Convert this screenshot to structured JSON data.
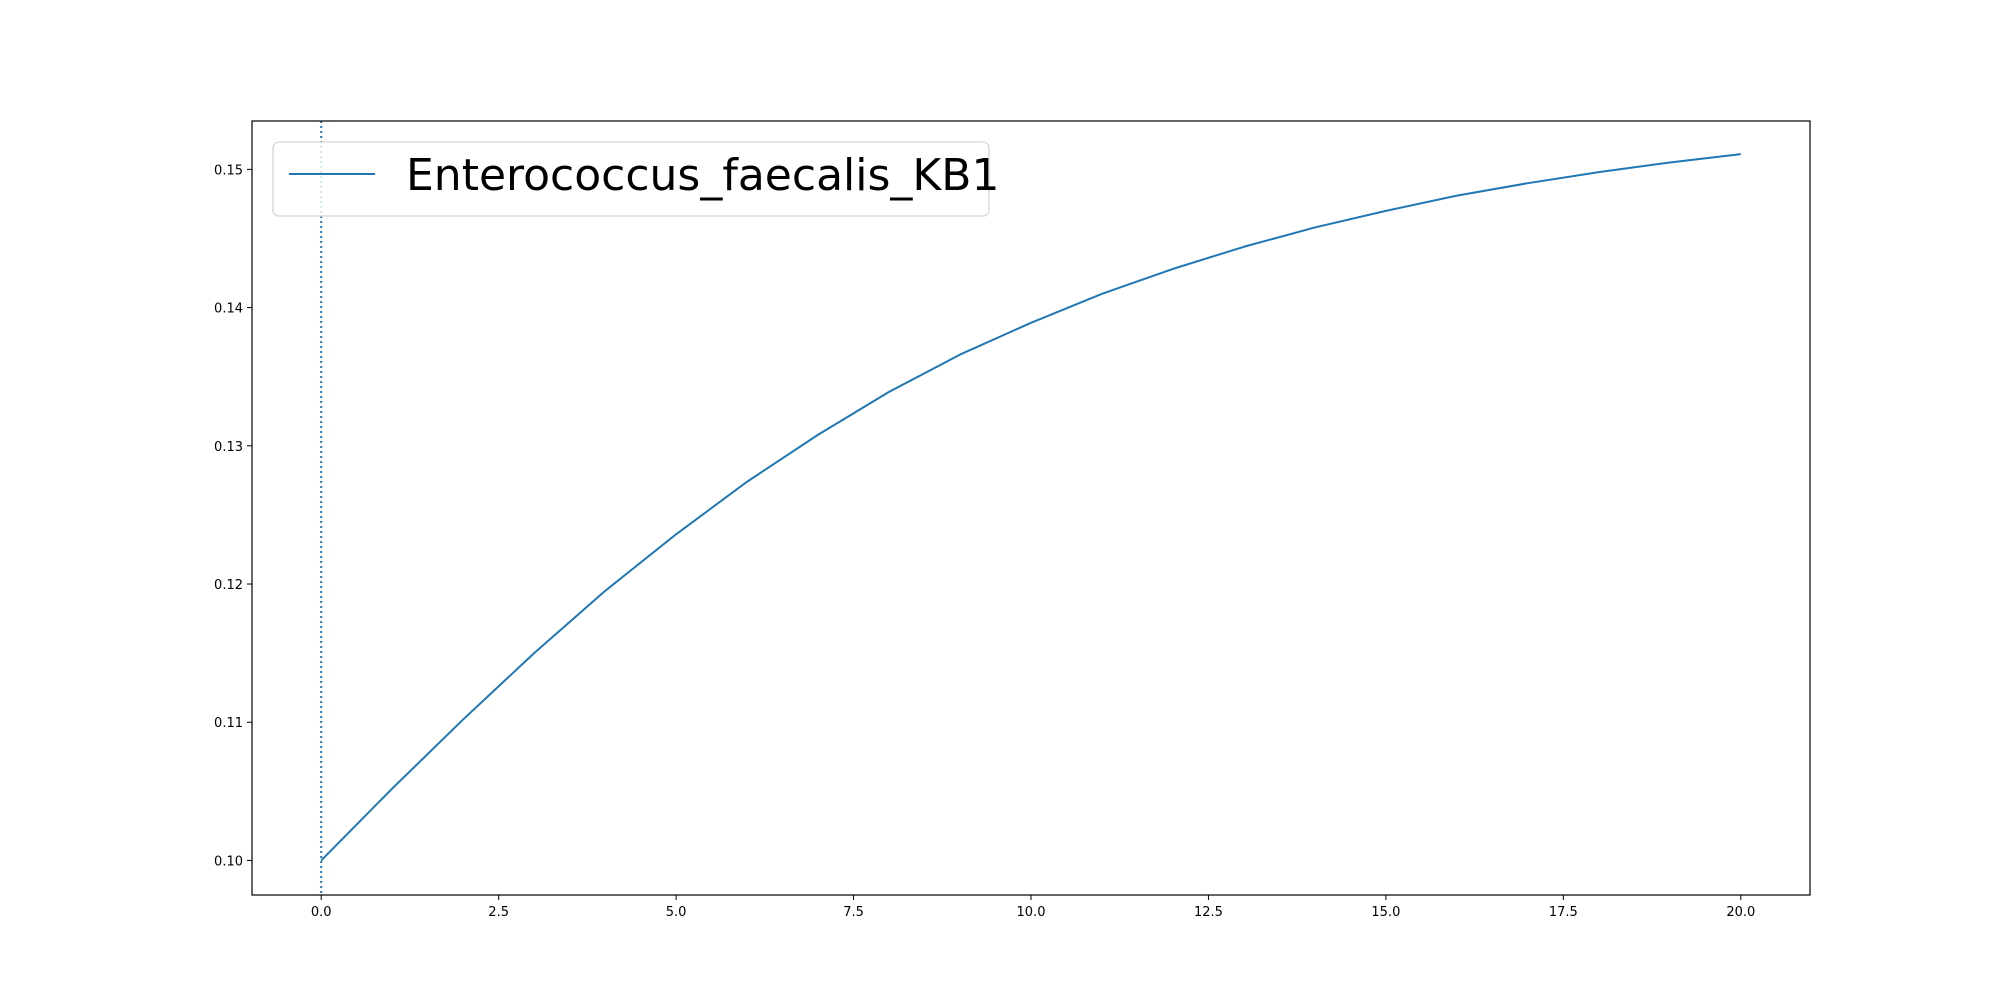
{
  "chart_data": {
    "type": "line",
    "title": "",
    "xlabel": "",
    "ylabel": "",
    "xlim": [
      -0.975,
      20.975
    ],
    "ylim": [
      0.0975,
      0.1535
    ],
    "xticks": [
      "0.0",
      "2.5",
      "5.0",
      "7.5",
      "10.0",
      "12.5",
      "15.0",
      "17.5",
      "20.0"
    ],
    "yticks": [
      "0.10",
      "0.11",
      "0.12",
      "0.13",
      "0.14",
      "0.15"
    ],
    "grid": false,
    "legend_position": "top-left",
    "vertical_marker": {
      "x": 0.0,
      "style": "dotted"
    },
    "series": [
      {
        "name": "Enterococcus_faecalis_KB1",
        "color": "#1f77b4",
        "x": [
          0,
          1,
          2,
          3,
          4,
          5,
          6,
          7,
          8,
          9,
          10,
          11,
          12,
          13,
          14,
          15,
          16,
          17,
          18,
          19,
          20
        ],
        "values": [
          0.1,
          0.1052,
          0.1102,
          0.115,
          0.1195,
          0.1236,
          0.1274,
          0.1308,
          0.1339,
          0.1366,
          0.1389,
          0.141,
          0.1428,
          0.1444,
          0.1458,
          0.147,
          0.1481,
          0.149,
          0.1498,
          0.1505,
          0.1511
        ]
      }
    ]
  }
}
